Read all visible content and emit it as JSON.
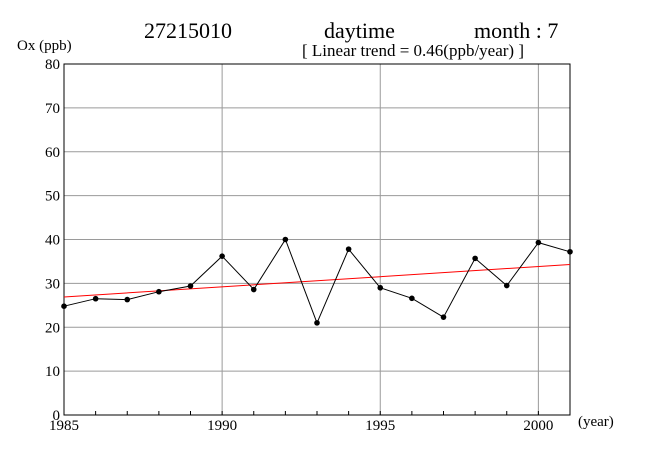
{
  "header": {
    "station": "27215010",
    "period": "daytime",
    "month": "month : 7",
    "trend": "[ Linear trend = 0.46(ppb/year) ]"
  },
  "chart_data": {
    "type": "line",
    "ylabel": "Ox (ppb)",
    "xunit": "(year)",
    "xlim": [
      1985,
      2001
    ],
    "ylim": [
      0,
      80
    ],
    "x_ticks": [
      1985,
      1990,
      1995,
      2000
    ],
    "y_ticks": [
      0,
      10,
      20,
      30,
      40,
      50,
      60,
      70,
      80
    ],
    "grid": true,
    "series": [
      {
        "color": "#000000",
        "x": [
          1985,
          1986,
          1987,
          1988,
          1989,
          1990,
          1991,
          1992,
          1993,
          1994,
          1995,
          1996,
          1997,
          1998,
          1999,
          2000,
          2001
        ],
        "values": [
          24.8,
          26.5,
          26.3,
          28.1,
          29.4,
          36.2,
          28.6,
          40.0,
          21.0,
          37.8,
          29.0,
          26.6,
          22.3,
          35.7,
          29.5,
          39.3,
          37.2
        ]
      }
    ],
    "trend_line": {
      "color": "#ff0000",
      "x": [
        1985,
        2001
      ],
      "values": [
        26.9,
        34.3
      ]
    }
  }
}
